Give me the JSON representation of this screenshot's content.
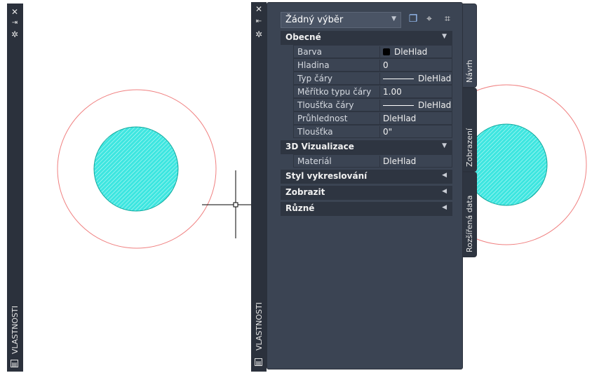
{
  "left_palette": {
    "title": "VLASTNOSTI"
  },
  "palette": {
    "title": "VLASTNOSTI",
    "selection": "Žádný výběr",
    "sections": [
      {
        "title": "Obecné",
        "expanded": true,
        "rows": [
          {
            "label": "Barva",
            "value": "DleHlad"
          },
          {
            "label": "Hladina",
            "value": "0"
          },
          {
            "label": "Typ čáry",
            "value": "DleHlad"
          },
          {
            "label": "Měřítko typu čáry",
            "value": "1.00"
          },
          {
            "label": "Tloušťka čáry",
            "value": "DleHlad"
          },
          {
            "label": "Průhlednost",
            "value": "DleHlad"
          },
          {
            "label": "Tloušťka",
            "value": "0\""
          }
        ]
      },
      {
        "title": "3D Vizualizace",
        "expanded": true,
        "rows": [
          {
            "label": "Materiál",
            "value": "DleHlad"
          }
        ]
      },
      {
        "title": "Styl vykreslování",
        "expanded": false
      },
      {
        "title": "Zobrazit",
        "expanded": false
      },
      {
        "title": "Různé",
        "expanded": false
      }
    ],
    "tabs": [
      {
        "label": "Návrh",
        "active": true
      },
      {
        "label": "Zobrazení"
      },
      {
        "label": "Rozšířená data"
      }
    ]
  },
  "colors": {
    "panel": "#3b4453",
    "circle_outline": "#f08080",
    "hatch": "#20d8d0"
  }
}
